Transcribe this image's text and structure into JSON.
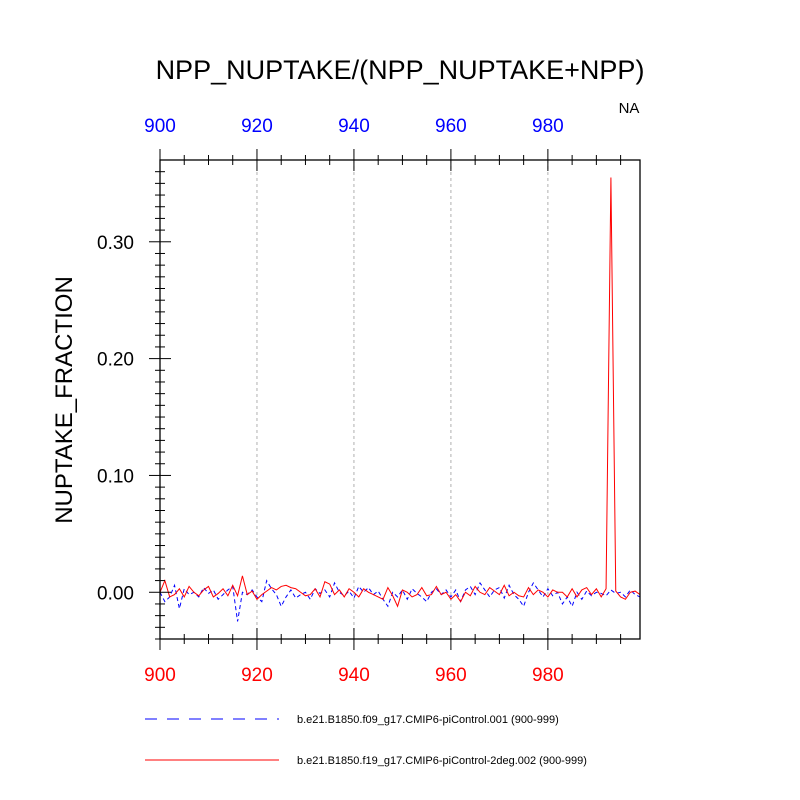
{
  "chart_data": {
    "type": "line",
    "title": "NPP_NUPTAKE/(NPP_NUPTAKE+NPP)",
    "region_label": "NA",
    "xlabel": "",
    "ylabel": "NUPTAKE_FRACTION",
    "xlim": [
      900,
      999
    ],
    "ylim": [
      -0.04,
      0.37
    ],
    "x_ticks": [
      900,
      920,
      940,
      960,
      980
    ],
    "y_ticks": [
      0.0,
      0.1,
      0.2,
      0.3
    ],
    "y_tick_labels": [
      "0.00",
      "0.10",
      "0.20",
      "0.30"
    ],
    "top_axis_color": "#0000ff",
    "bottom_axis_color": "#ff0000",
    "grid": "vertical dashed at x ticks",
    "legend_position": "bottom",
    "x": [
      900,
      901,
      902,
      903,
      904,
      905,
      906,
      907,
      908,
      909,
      910,
      911,
      912,
      913,
      914,
      915,
      916,
      917,
      918,
      919,
      920,
      921,
      922,
      923,
      924,
      925,
      926,
      927,
      928,
      929,
      930,
      931,
      932,
      933,
      934,
      935,
      936,
      937,
      938,
      939,
      940,
      941,
      942,
      943,
      944,
      945,
      946,
      947,
      948,
      949,
      950,
      951,
      952,
      953,
      954,
      955,
      956,
      957,
      958,
      959,
      960,
      961,
      962,
      963,
      964,
      965,
      966,
      967,
      968,
      969,
      970,
      971,
      972,
      973,
      974,
      975,
      976,
      977,
      978,
      979,
      980,
      981,
      982,
      983,
      984,
      985,
      986,
      987,
      988,
      989,
      990,
      991,
      992,
      993,
      994,
      995,
      996,
      997,
      998,
      999
    ],
    "series": [
      {
        "name": "b.e21.B1850.f09_g17.CMIP6-piControl.001 (900-999)",
        "color": "#0000ff",
        "dash": "dashed",
        "values": [
          0.0,
          -0.008,
          -0.004,
          0.006,
          -0.014,
          0.003,
          -0.002,
          0.0,
          -0.004,
          0.004,
          -0.001,
          0.002,
          -0.006,
          -0.002,
          0.002,
          0.005,
          -0.025,
          0.0,
          -0.002,
          0.002,
          -0.004,
          -0.008,
          0.01,
          0.003,
          -0.002,
          -0.012,
          -0.004,
          0.002,
          -0.005,
          -0.002,
          0.0,
          -0.006,
          0.003,
          -0.001,
          0.002,
          -0.004,
          0.008,
          0.0,
          -0.003,
          0.001,
          -0.005,
          0.005,
          0.0,
          0.004,
          -0.002,
          0.001,
          -0.006,
          -0.012,
          0.0,
          -0.004,
          0.002,
          -0.006,
          0.003,
          -0.001,
          -0.004,
          -0.008,
          0.0,
          0.003,
          -0.002,
          0.002,
          -0.004,
          0.002,
          -0.008,
          0.002,
          0.005,
          -0.002,
          0.008,
          0.002,
          -0.004,
          0.002,
          0.004,
          -0.005,
          0.006,
          -0.002,
          -0.006,
          -0.012,
          0.0,
          0.008,
          0.002,
          -0.004,
          0.003,
          -0.003,
          0.0,
          -0.01,
          -0.004,
          -0.012,
          0.0,
          -0.006,
          0.001,
          -0.003,
          0.0,
          -0.001,
          -0.003,
          0.002,
          -0.001,
          0.0,
          -0.004,
          0.002,
          -0.002,
          -0.004
        ]
      },
      {
        "name": "b.e21.B1850.f19_g17.CMIP6-piControl-2deg.002 (900-999)",
        "color": "#ff0000",
        "dash": "solid",
        "values": [
          0.0,
          0.01,
          -0.004,
          -0.002,
          0.003,
          -0.004,
          0.005,
          0.0,
          -0.003,
          0.002,
          0.005,
          -0.004,
          -0.001,
          0.003,
          -0.003,
          0.006,
          -0.003,
          0.014,
          -0.002,
          0.001,
          -0.006,
          -0.002,
          0.001,
          0.004,
          0.002,
          0.005,
          0.006,
          0.004,
          0.003,
          0.0,
          -0.003,
          -0.002,
          0.003,
          -0.004,
          0.009,
          0.007,
          -0.002,
          0.002,
          -0.004,
          0.003,
          0.0,
          -0.004,
          0.003,
          0.0,
          -0.002,
          -0.004,
          -0.006,
          0.004,
          -0.003,
          -0.012,
          0.002,
          0.0,
          -0.004,
          -0.002,
          0.004,
          -0.003,
          -0.002,
          0.005,
          -0.002,
          0.0,
          -0.006,
          -0.002,
          -0.008,
          0.0,
          -0.003,
          0.005,
          0.0,
          -0.002,
          0.004,
          0.001,
          -0.002,
          0.006,
          -0.003,
          0.0,
          -0.003,
          -0.004,
          0.004,
          -0.002,
          0.002,
          0.0,
          -0.004,
          0.002,
          0.0,
          0.0,
          -0.004,
          0.003,
          -0.004,
          0.002,
          0.004,
          -0.002,
          0.003,
          -0.004,
          0.003,
          0.355,
          0.001,
          -0.004,
          -0.006,
          0.0,
          0.001,
          -0.002
        ]
      }
    ]
  }
}
